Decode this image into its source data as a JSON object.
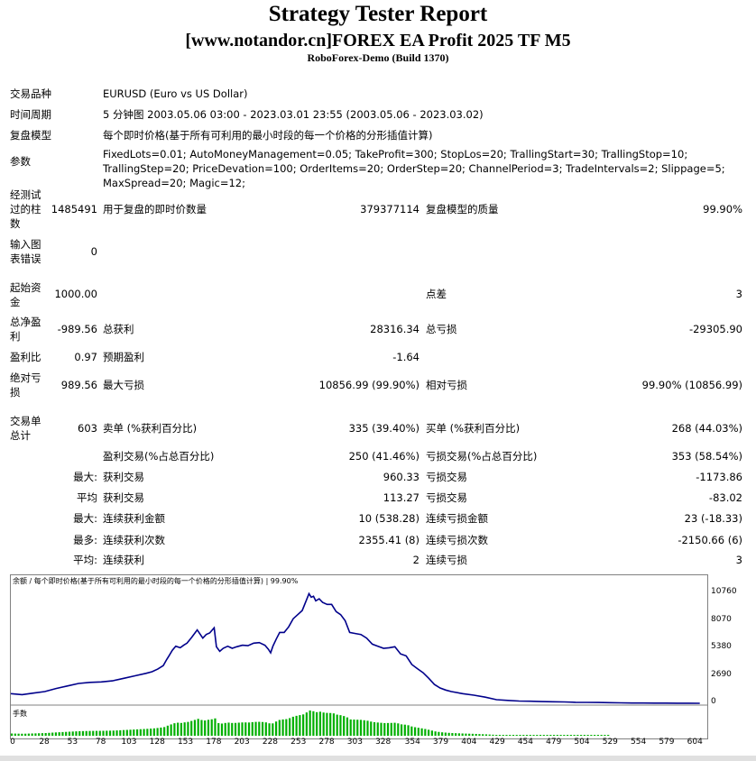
{
  "header": {
    "title": "Strategy Tester Report",
    "subtitle": "[www.notandor.cn]FOREX EA Profit 2025 TF M5",
    "server": "RoboForex-Demo (Build 1370)"
  },
  "rows": [
    {
      "label": "交易品种",
      "value": "EURUSD (Euro vs US Dollar)"
    },
    {
      "label": "时间周期",
      "value": "5 分钟图 2003.05.06 03:00 - 2023.03.01 23:55 (2003.05.06 - 2023.03.02)"
    },
    {
      "label": "复盘模型",
      "value": "每个即时价格(基于所有可利用的最小时段的每一个价格的分形插值计算)"
    },
    {
      "label": "参数",
      "value": "FixedLots=0.01; AutoMoneyManagement=0.05; TakeProfit=300; StopLos=20; TrallingStart=30; TrallingStop=10; TrallingStep=20; PriceDevation=100; OrderItems=20; OrderStep=20; ChannelPeriod=3; TradeIntervals=2; Slippage=5; MaxSpread=20; Magic=12;"
    }
  ],
  "stats": {
    "bars_label": "经测试过的柱数",
    "bars_value": "1485491",
    "ticks_label": "用于复盘的即时价数量",
    "ticks_value": "379377114",
    "quality_label": "复盘模型的质量",
    "quality_value": "99.90%",
    "errors_label": "输入图表错误",
    "errors_value": "0",
    "deposit_label": "起始资金",
    "deposit_value": "1000.00",
    "spread_label": "点差",
    "spread_value": "3",
    "net_label": "总净盈利",
    "net_value": "-989.56",
    "gross_profit_label": "总获利",
    "gross_profit_value": "28316.34",
    "gross_loss_label": "总亏损",
    "gross_loss_value": "-29305.90",
    "pf_label": "盈利比",
    "pf_value": "0.97",
    "expected_label": "预期盈利",
    "expected_value": "-1.64",
    "abs_dd_label": "绝对亏损",
    "abs_dd_value": "989.56",
    "max_dd_label": "最大亏损",
    "max_dd_value": "10856.99 (99.90%)",
    "rel_dd_label": "相对亏损",
    "rel_dd_value": "99.90% (10856.99)",
    "total_trades_label": "交易单总计",
    "total_trades_value": "603",
    "short_label": "卖单 (%获利百分比)",
    "short_value": "335 (39.40%)",
    "long_label": "买单 (%获利百分比)",
    "long_value": "268 (44.03%)",
    "profit_trades_label": "盈利交易(%占总百分比)",
    "profit_trades_value": "250 (41.46%)",
    "loss_trades_label": "亏损交易(%占总百分比)",
    "loss_trades_value": "353 (58.54%)",
    "largest_prefix": "最大:",
    "largest_profit_label": "获利交易",
    "largest_profit_value": "960.33",
    "largest_loss_label": "亏损交易",
    "largest_loss_value": "-1173.86",
    "average_prefix": "平均",
    "average_profit_label": "获利交易",
    "average_profit_value": "113.27",
    "average_loss_label": "亏损交易",
    "average_loss_value": "-83.02",
    "max_cons_prefix": "最大:",
    "max_cons_wins_label": "连续获利金额",
    "max_cons_wins_value": "10 (538.28)",
    "max_cons_losses_label": "连续亏损金额",
    "max_cons_losses_value": "23 (-18.33)",
    "most_prefix": "最多:",
    "max_cons_profit_label": "连续获利次数",
    "max_cons_profit_value": "2355.41 (8)",
    "max_cons_loss_label": "连续亏损次数",
    "max_cons_loss_value": "-2150.66 (6)",
    "avg_cons_prefix": "平均:",
    "avg_cons_wins_label": "连续获利",
    "avg_cons_wins_value": "2",
    "avg_cons_losses_label": "连续亏损",
    "avg_cons_losses_value": "3"
  },
  "chart_data": {
    "type": "line",
    "title": "余额 / 每个即时价格(基于所有可利用的最小时段的每一个价格的分形插值计算) | 99.90%",
    "volume_label": "手数",
    "ylim": [
      0,
      11500
    ],
    "xlim": [
      0,
      615
    ],
    "y_ticks": [
      0,
      2690,
      5380,
      8070,
      10760
    ],
    "x_ticks": [
      0,
      28,
      53,
      78,
      103,
      128,
      153,
      178,
      203,
      228,
      253,
      278,
      303,
      328,
      354,
      379,
      404,
      429,
      454,
      479,
      504,
      529,
      554,
      579,
      604
    ],
    "line_color": "#00008b",
    "volume_color": "#00b000",
    "series": [
      {
        "x": [
          0,
          10,
          20,
          30,
          40,
          50,
          60,
          70,
          80,
          90,
          100,
          110,
          120,
          125,
          130,
          135,
          138,
          140,
          143,
          146,
          150,
          153,
          156,
          160,
          165,
          170,
          173,
          176,
          180,
          182,
          185,
          188,
          192,
          196,
          200,
          205,
          210,
          215,
          220,
          225,
          228,
          230,
          232,
          235,
          238,
          242,
          246,
          250,
          254,
          258,
          262,
          264,
          266,
          268,
          270,
          273,
          276,
          280,
          284,
          288,
          292,
          296,
          300,
          305,
          310,
          315,
          320,
          325,
          330,
          335,
          340,
          345,
          350,
          355,
          360,
          365,
          370,
          375,
          380,
          385,
          390,
          400,
          410,
          420,
          430,
          440,
          450,
          460,
          470,
          480,
          490,
          500,
          510,
          520,
          530,
          540,
          550,
          560,
          570,
          580,
          590,
          600,
          610
        ],
        "y": [
          950,
          850,
          1000,
          1150,
          1450,
          1700,
          1950,
          2050,
          2100,
          2200,
          2450,
          2700,
          2950,
          3100,
          3350,
          3700,
          4300,
          4650,
          5200,
          5600,
          5450,
          5700,
          5900,
          6450,
          7200,
          6400,
          6750,
          6900,
          7400,
          5550,
          5100,
          5400,
          5600,
          5400,
          5550,
          5700,
          5650,
          5900,
          5950,
          5700,
          5300,
          4950,
          5600,
          6300,
          6950,
          6950,
          7500,
          8300,
          8700,
          9100,
          10200,
          10760,
          10400,
          10500,
          10050,
          10250,
          9900,
          9700,
          9700,
          9000,
          8700,
          8100,
          6950,
          6850,
          6750,
          6400,
          5800,
          5600,
          5400,
          5450,
          5550,
          4850,
          4650,
          3800,
          3400,
          3000,
          2450,
          1850,
          1500,
          1300,
          1150,
          950,
          800,
          600,
          350,
          280,
          220,
          200,
          170,
          150,
          130,
          100,
          90,
          80,
          60,
          40,
          30,
          25,
          20,
          15,
          10,
          5,
          3
        ]
      }
    ]
  }
}
